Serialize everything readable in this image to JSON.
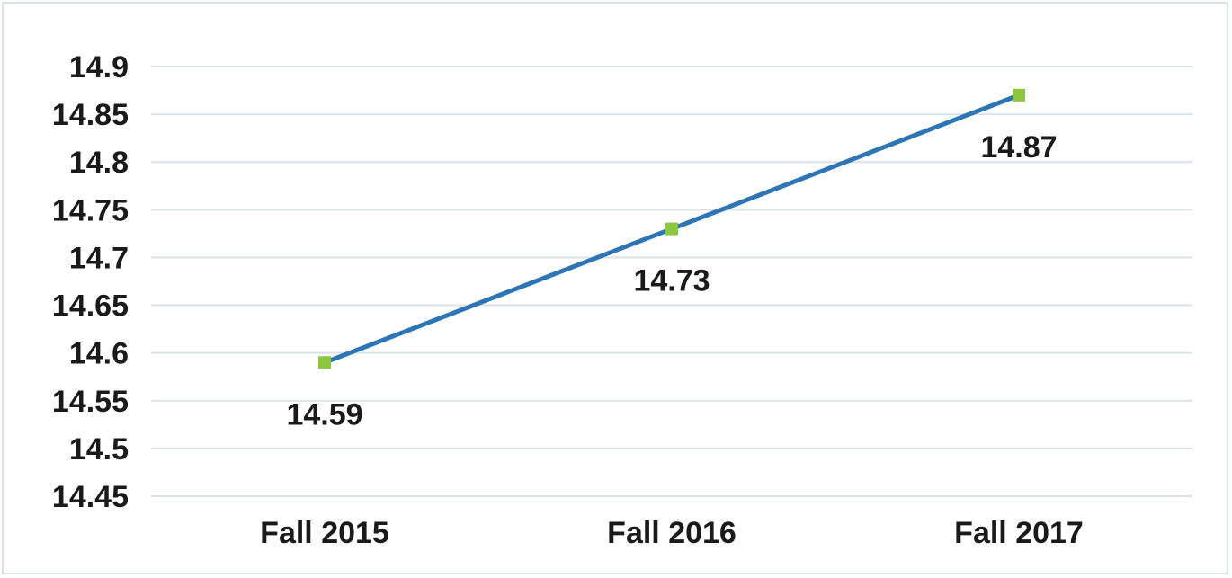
{
  "chart_data": {
    "type": "line",
    "title": "",
    "xlabel": "",
    "ylabel": "",
    "categories": [
      "Fall 2015",
      "Fall 2016",
      "Fall 2017"
    ],
    "series": [
      {
        "values": [
          14.59,
          14.73,
          14.87
        ],
        "data_labels": [
          "14.59",
          "14.73",
          "14.87"
        ],
        "line_color": "#2e75b6",
        "marker_color": "#8dc63f",
        "marker": "square"
      }
    ],
    "ylim": [
      14.45,
      14.9
    ],
    "y_ticks": [
      "14.9",
      "14.85",
      "14.8",
      "14.75",
      "14.7",
      "14.65",
      "14.6",
      "14.55",
      "14.5",
      "14.45"
    ],
    "grid": true,
    "legend": "none"
  }
}
